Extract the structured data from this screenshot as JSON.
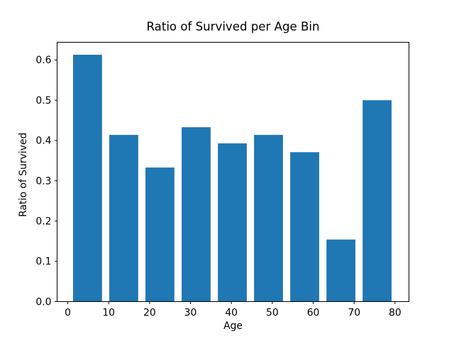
{
  "chart_data": {
    "type": "bar",
    "title": "Ratio of Survived per Age Bin",
    "xlabel": "Age",
    "ylabel": "Ratio of Survived",
    "bar_color": "#1f77b4",
    "axis_color": "#000000",
    "background_color": "#ffffff",
    "grid": false,
    "legend": "none",
    "xlim": [
      -2.6,
      83.4
    ],
    "ylim": [
      0,
      0.644
    ],
    "bars": {
      "centers": [
        4.84,
        13.69,
        22.53,
        31.38,
        40.23,
        49.07,
        57.92,
        66.77,
        75.61
      ],
      "width": 7.07,
      "values": [
        0.613,
        0.414,
        0.333,
        0.433,
        0.393,
        0.414,
        0.371,
        0.154,
        0.5
      ]
    },
    "xticks": {
      "values": [
        0,
        10,
        20,
        30,
        40,
        50,
        60,
        70,
        80
      ],
      "labels": [
        "0",
        "10",
        "20",
        "30",
        "40",
        "50",
        "60",
        "70",
        "80"
      ]
    },
    "yticks": {
      "values": [
        0.0,
        0.1,
        0.2,
        0.3,
        0.4,
        0.5,
        0.6
      ],
      "labels": [
        "0.0",
        "0.1",
        "0.2",
        "0.3",
        "0.4",
        "0.5",
        "0.6"
      ]
    }
  }
}
